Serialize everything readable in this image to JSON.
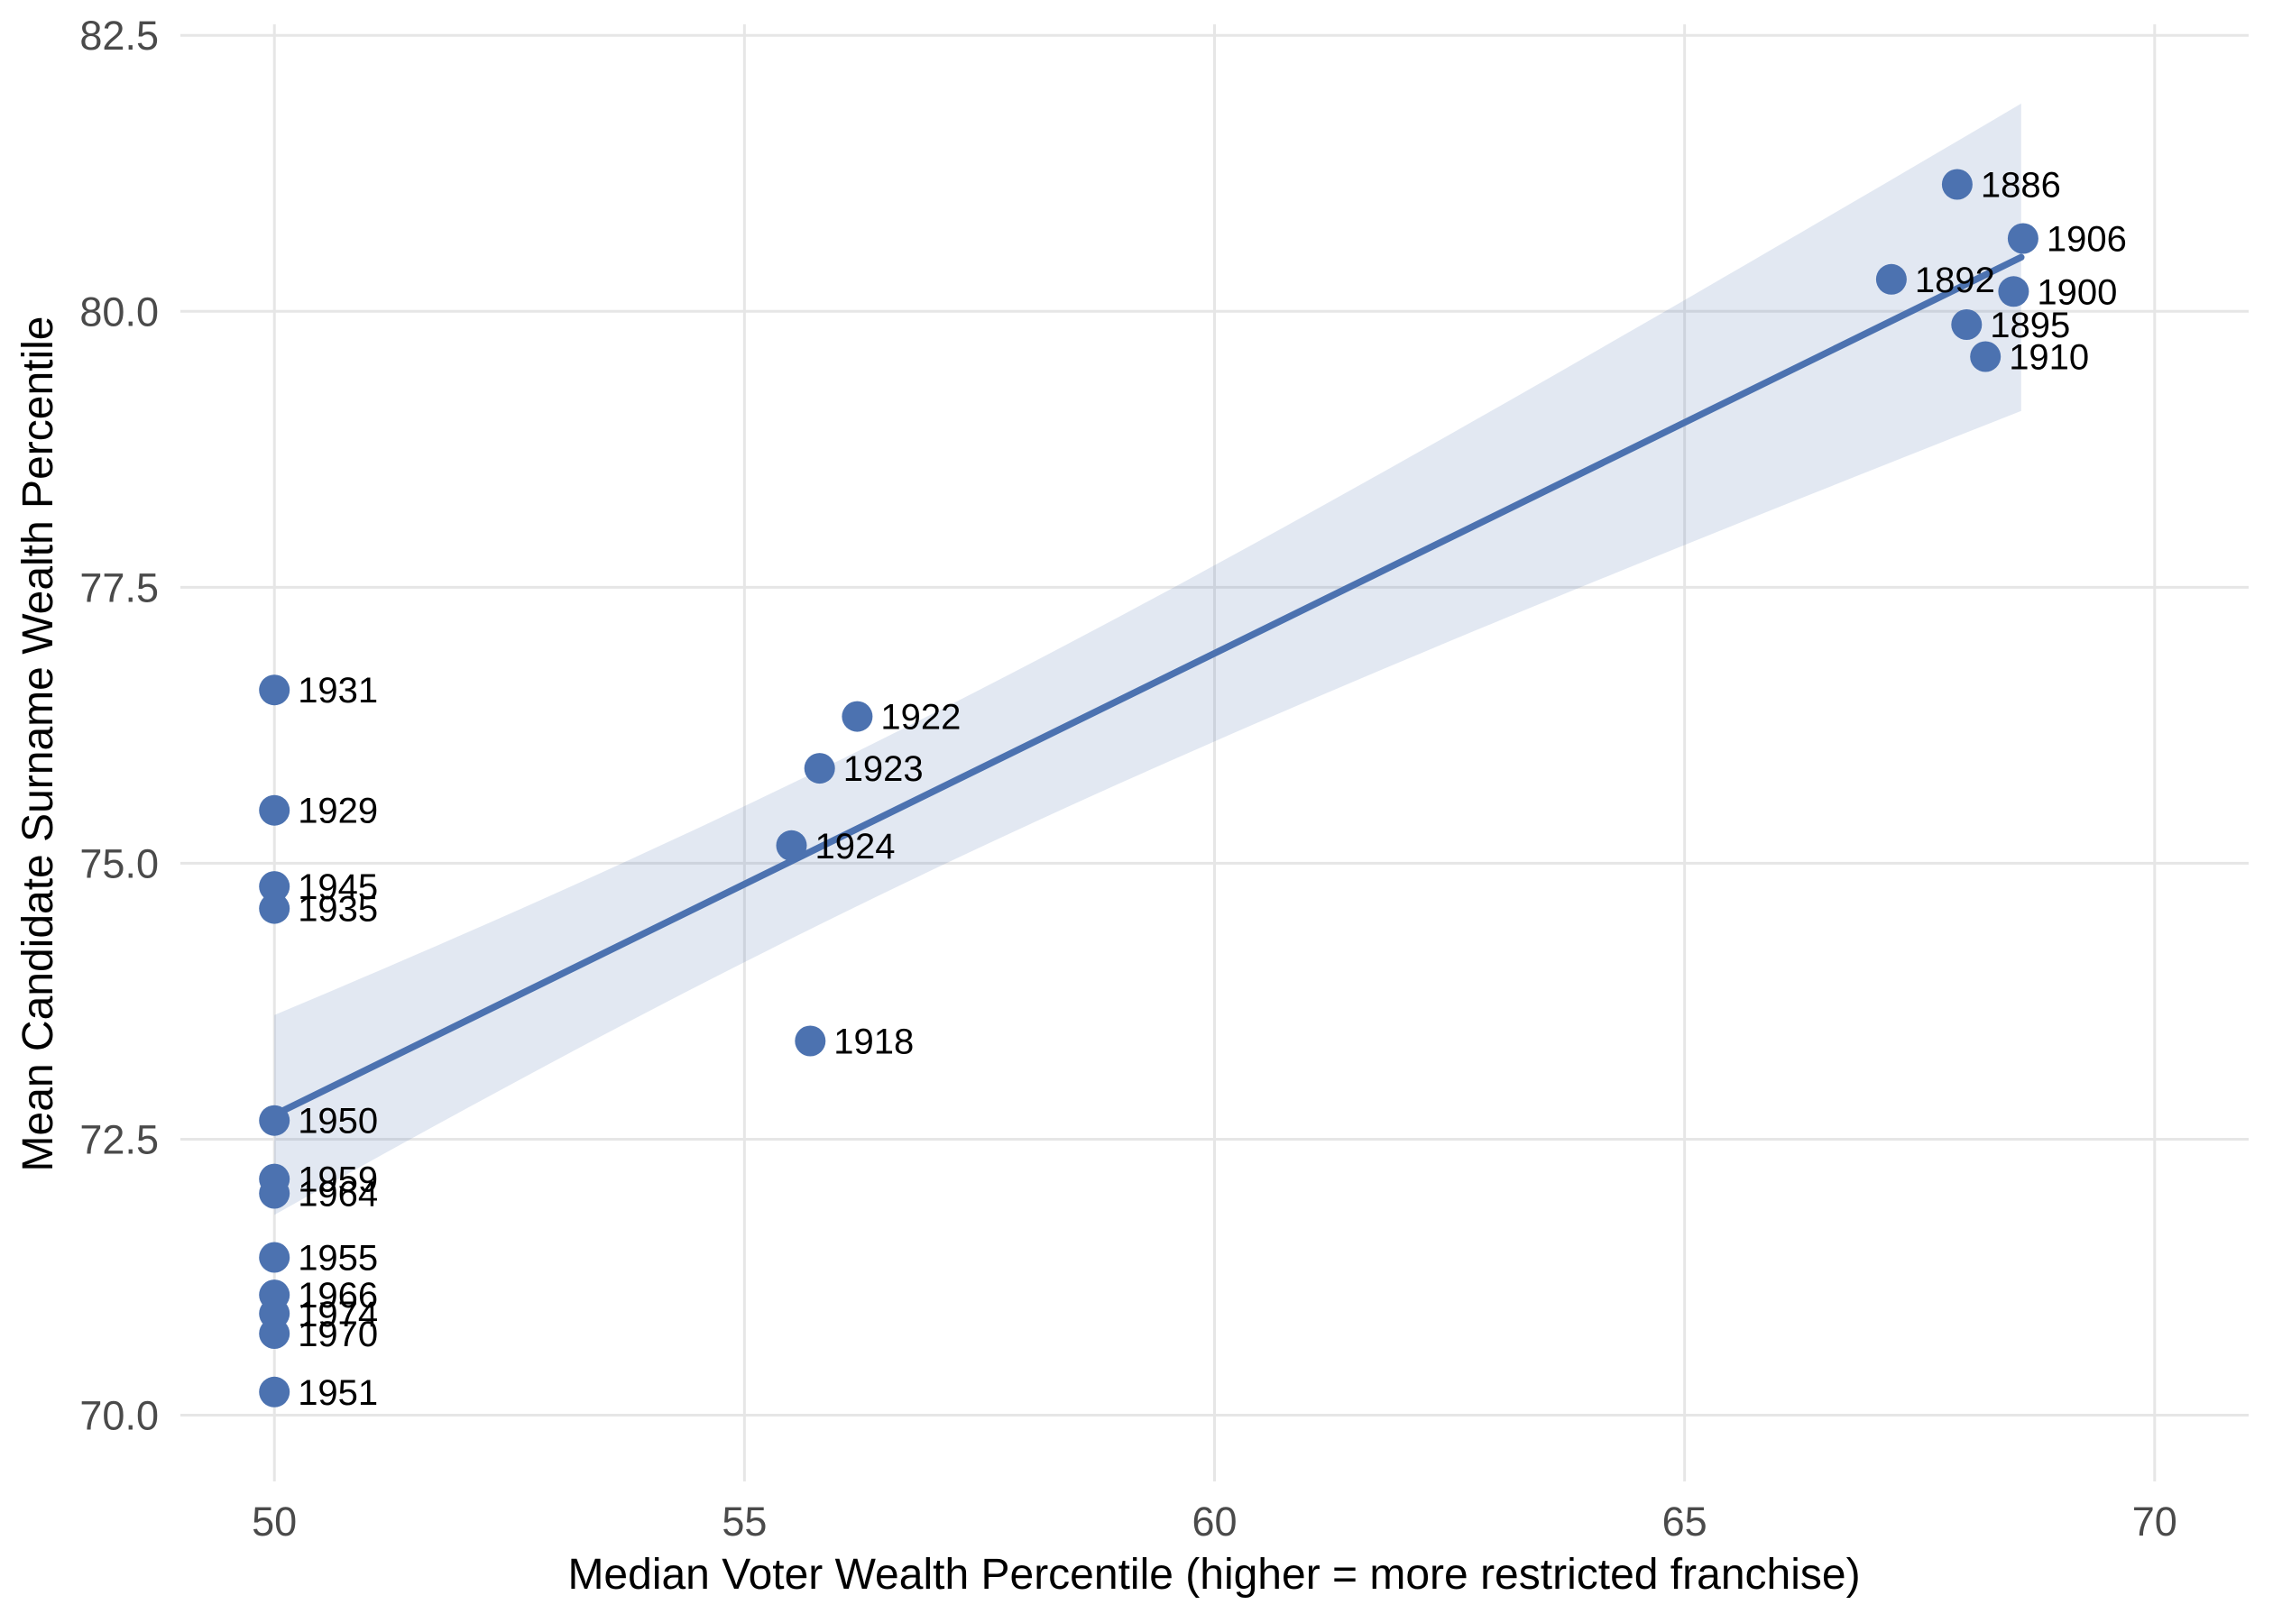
{
  "chart_data": {
    "type": "scatter",
    "title": "",
    "xlabel": "Median Voter Wealth Percentile (higher = more restricted franchise)",
    "ylabel": "Mean Candidate Surname Wealth Percentile",
    "xlim": [
      49.0,
      71.0
    ],
    "ylim": [
      69.4,
      82.6
    ],
    "grid": true,
    "legend": "none",
    "x_ticks": [
      50,
      55,
      60,
      65,
      70
    ],
    "x_tick_labels": [
      "50",
      "55",
      "60",
      "65",
      "70"
    ],
    "y_ticks": [
      70.0,
      72.5,
      75.0,
      77.5,
      80.0,
      82.5
    ],
    "y_tick_labels": [
      "70.0",
      "72.5",
      "75.0",
      "77.5",
      "80.0",
      "82.5"
    ],
    "points": [
      {
        "label": "1886",
        "x": 67.9,
        "y": 81.15
      },
      {
        "label": "1892",
        "x": 67.2,
        "y": 80.29
      },
      {
        "label": "1895",
        "x": 68.0,
        "y": 79.88
      },
      {
        "label": "1900",
        "x": 68.5,
        "y": 80.18
      },
      {
        "label": "1906",
        "x": 68.6,
        "y": 80.66
      },
      {
        "label": "1910",
        "x": 68.2,
        "y": 79.59
      },
      {
        "label": "1918",
        "x": 55.7,
        "y": 73.39
      },
      {
        "label": "1922",
        "x": 56.2,
        "y": 76.33
      },
      {
        "label": "1923",
        "x": 55.8,
        "y": 75.86
      },
      {
        "label": "1924",
        "x": 55.5,
        "y": 75.16
      },
      {
        "label": "1929",
        "x": 50.0,
        "y": 75.48
      },
      {
        "label": "1931",
        "x": 50.0,
        "y": 76.57
      },
      {
        "label": "1935",
        "x": 50.0,
        "y": 74.59
      },
      {
        "label": "1945",
        "x": 50.0,
        "y": 74.79
      },
      {
        "label": "1950",
        "x": 50.0,
        "y": 72.67
      },
      {
        "label": "1951",
        "x": 50.0,
        "y": 70.21
      },
      {
        "label": "1955",
        "x": 50.0,
        "y": 71.43
      },
      {
        "label": "1959",
        "x": 50.0,
        "y": 72.14
      },
      {
        "label": "1964",
        "x": 50.0,
        "y": 72.01
      },
      {
        "label": "1966",
        "x": 50.0,
        "y": 71.09
      },
      {
        "label": "1970",
        "x": 50.0,
        "y": 70.74
      },
      {
        "label": "1974",
        "x": 50.0,
        "y": 70.92
      }
    ],
    "trend_line": {
      "x_start": 50.0,
      "y_start": 72.72,
      "x_end": 68.58,
      "y_end": 80.49
    },
    "confidence_band": {
      "x_start": 50.0,
      "x_end": 68.58,
      "half_width_min": 0.7,
      "min_at_x": 56.0,
      "curvature": 0.01867,
      "top_at_x_start": 73.63,
      "bottom_at_x_start": 71.82,
      "top_at_x_end": 81.92,
      "bottom_at_x_end": 79.09
    },
    "colors": {
      "point": "#4C72B0",
      "line": "#4C72B0",
      "band": "rgba(76,114,176,0.16)",
      "grid": "#E6E6E6",
      "tick_text": "#4A4A4A",
      "label_text": "#000000",
      "background": "#FFFFFF"
    }
  }
}
